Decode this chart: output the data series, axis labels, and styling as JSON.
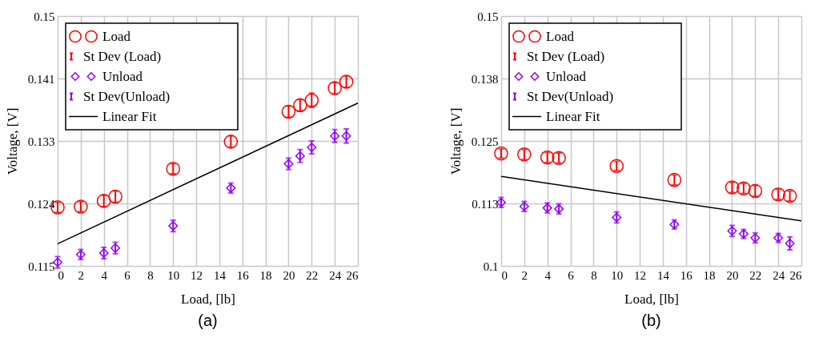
{
  "chart_data": [
    {
      "type": "scatter",
      "title": "(a)",
      "xlabel": "Load, [lb]",
      "ylabel": "Voltage, [V]",
      "annotations": [
        "St Dev (Load)",
        "St Dev(Unload)"
      ],
      "xlim": [
        0,
        26
      ],
      "xticks": [
        0,
        2,
        4,
        6,
        8,
        10,
        12,
        14,
        16,
        18,
        20,
        22,
        24,
        26
      ],
      "ylim": [
        0.115,
        0.15
      ],
      "yticks": [
        0.115,
        {
          "value": 0.12375,
          "label": "0.124"
        },
        {
          "value": 0.1325,
          "label": "0.133"
        },
        {
          "value": 0.14125,
          "label": "0.141"
        },
        0.15
      ],
      "grid": true,
      "legend": "top left",
      "series": [
        {
          "name": "Load",
          "color": "#ff0000",
          "marker": "circle",
          "x": [
            0,
            2,
            4,
            5,
            10,
            15,
            20,
            21,
            22,
            24,
            25
          ],
          "values": [
            0.1232,
            0.1233,
            0.1241,
            0.1247,
            0.1286,
            0.1324,
            0.1366,
            0.1375,
            0.1382,
            0.1399,
            0.1408
          ],
          "errors": [
            0.0007,
            0.0007,
            0.0008,
            0.0008,
            0.0007,
            0.0008,
            0.0008,
            0.0008,
            0.001,
            0.0008,
            0.0008
          ]
        },
        {
          "name": "Unload",
          "color": "#8f00ff",
          "marker": "diamond",
          "x": [
            0,
            2,
            4,
            5,
            10,
            15,
            20,
            21,
            22,
            24,
            25
          ],
          "values": [
            0.1155,
            0.1166,
            0.1168,
            0.1175,
            0.1206,
            0.1259,
            0.1293,
            0.1304,
            0.1316,
            0.1332,
            0.1332
          ],
          "errors": [
            0.0008,
            0.0007,
            0.0008,
            0.0008,
            0.0008,
            0.0007,
            0.0008,
            0.0009,
            0.0009,
            0.0009,
            0.001
          ]
        },
        {
          "name": "Linear Fit",
          "type": "line",
          "color": "#000000",
          "marker": "none",
          "line_style": "solid",
          "x": [
            0,
            26
          ],
          "values": [
            0.1181,
            0.1378
          ]
        }
      ]
    },
    {
      "type": "scatter",
      "title": "(b)",
      "xlabel": "Load, [lb]",
      "ylabel": "Voltage, [V]",
      "annotations": [
        "St Dev (Load)",
        "St Dev(Unload)"
      ],
      "xlim": [
        0,
        26
      ],
      "xticks": [
        0,
        2,
        4,
        6,
        8,
        10,
        12,
        14,
        16,
        18,
        20,
        22,
        24,
        26
      ],
      "ylim": [
        0.1,
        0.15
      ],
      "yticks": [
        0.1,
        {
          "value": 0.1125,
          "label": "0.113"
        },
        {
          "value": 0.125,
          "label": "0.125"
        },
        {
          "value": 0.1375,
          "label": "0.138"
        },
        0.15
      ],
      "grid": true,
      "legend": "top left",
      "series": [
        {
          "name": "Load",
          "color": "#ff0000",
          "marker": "circle",
          "x": [
            0,
            2,
            4,
            5,
            10,
            15,
            20,
            21,
            22,
            24,
            25
          ],
          "values": [
            0.1225,
            0.1223,
            0.1217,
            0.1216,
            0.12,
            0.1172,
            0.1157,
            0.1155,
            0.115,
            0.1143,
            0.114
          ],
          "errors": [
            0.0009,
            0.001,
            0.001,
            0.001,
            0.0009,
            0.001,
            0.001,
            0.001,
            0.0011,
            0.001,
            0.001
          ]
        },
        {
          "name": "Unload",
          "color": "#8f00ff",
          "marker": "diamond",
          "x": [
            0,
            2,
            4,
            5,
            10,
            15,
            20,
            21,
            22,
            24,
            25
          ],
          "values": [
            0.1127,
            0.1119,
            0.1116,
            0.1114,
            0.1097,
            0.1083,
            0.107,
            0.1064,
            0.1056,
            0.1056,
            0.1045
          ],
          "errors": [
            0.001,
            0.001,
            0.001,
            0.001,
            0.0011,
            0.0009,
            0.0011,
            0.0009,
            0.001,
            0.0009,
            0.0013
          ]
        },
        {
          "name": "Linear Fit",
          "type": "line",
          "color": "#000000",
          "marker": "none",
          "line_style": "solid",
          "x": [
            0,
            26
          ],
          "values": [
            0.1179,
            0.109
          ]
        }
      ]
    }
  ]
}
